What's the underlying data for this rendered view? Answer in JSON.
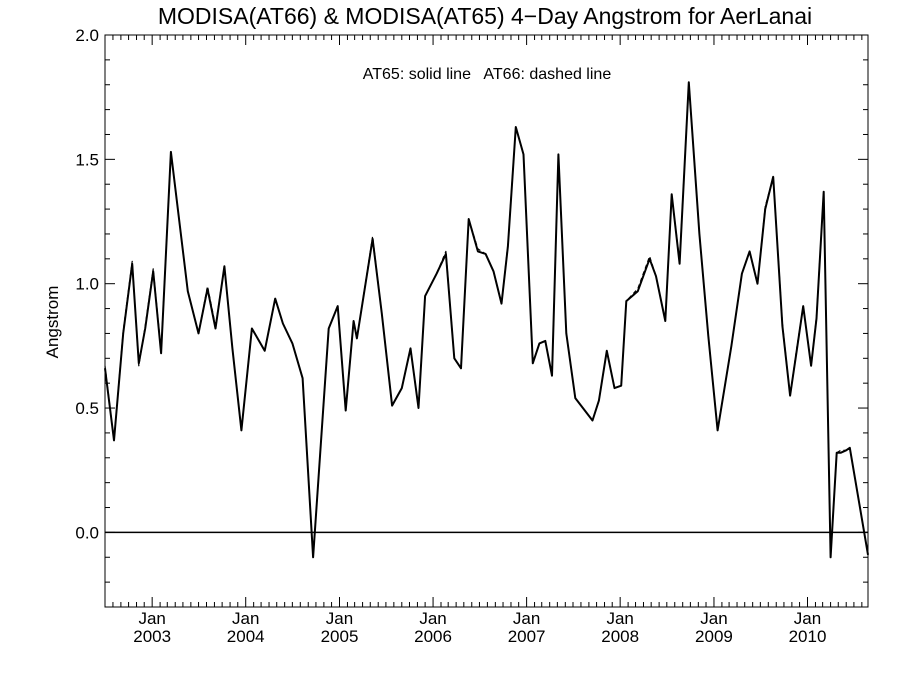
{
  "chart_data": {
    "type": "line",
    "title": "MODISA(AT66) & MODISA(AT65) 4−Day Angstrom for AerLanai",
    "xlabel": "",
    "ylabel": "Angstrom",
    "annotation": "AT65: solid line   AT66: dashed line",
    "ylim": [
      -0.3,
      2.0
    ],
    "xlim": [
      "2002-07-01",
      "2010-08-25"
    ],
    "y_ticks": [
      -0.3,
      0.0,
      0.5,
      1.0,
      1.5,
      2.0
    ],
    "y_tick_labels": [
      "0.0",
      "0.5",
      "1.0",
      "1.5",
      "2.0"
    ],
    "y_tick_label_values": [
      0.0,
      0.5,
      1.0,
      1.5,
      2.0
    ],
    "x_major_ticks": [
      {
        "date": "2003-01-01",
        "month": "Jan",
        "year": "2003"
      },
      {
        "date": "2004-01-01",
        "month": "Jan",
        "year": "2004"
      },
      {
        "date": "2005-01-01",
        "month": "Jan",
        "year": "2005"
      },
      {
        "date": "2006-01-01",
        "month": "Jan",
        "year": "2006"
      },
      {
        "date": "2007-01-01",
        "month": "Jan",
        "year": "2007"
      },
      {
        "date": "2008-01-01",
        "month": "Jan",
        "year": "2008"
      },
      {
        "date": "2009-01-01",
        "month": "Jan",
        "year": "2009"
      },
      {
        "date": "2010-01-01",
        "month": "Jan",
        "year": "2010"
      }
    ],
    "reference_line": 0.0,
    "grid": false,
    "series": [
      {
        "style": "solid",
        "points": [
          [
            "2002-07-01",
            0.66
          ],
          [
            "2002-08-05",
            0.37
          ],
          [
            "2002-09-10",
            0.8
          ],
          [
            "2002-10-15",
            1.08
          ],
          [
            "2002-11-10",
            0.68
          ],
          [
            "2002-12-05",
            0.82
          ],
          [
            "2003-01-05",
            1.05
          ],
          [
            "2003-02-05",
            0.72
          ],
          [
            "2003-03-15",
            1.53
          ],
          [
            "2003-05-20",
            0.97
          ],
          [
            "2003-07-01",
            0.8
          ],
          [
            "2003-08-05",
            0.98
          ],
          [
            "2003-09-05",
            0.82
          ],
          [
            "2003-10-10",
            1.07
          ],
          [
            "2003-11-10",
            0.74
          ],
          [
            "2003-12-15",
            0.41
          ],
          [
            "2004-01-25",
            0.82
          ],
          [
            "2004-03-15",
            0.73
          ],
          [
            "2004-04-25",
            0.94
          ],
          [
            "2004-05-25",
            0.84
          ],
          [
            "2004-07-01",
            0.76
          ],
          [
            "2004-08-10",
            0.62
          ],
          [
            "2004-09-20",
            -0.1
          ],
          [
            "2004-11-20",
            0.82
          ],
          [
            "2004-12-25",
            0.91
          ],
          [
            "2005-01-25",
            0.49
          ],
          [
            "2005-02-25",
            0.85
          ],
          [
            "2005-03-10",
            0.78
          ],
          [
            "2005-05-10",
            1.18
          ],
          [
            "2005-06-15",
            0.88
          ],
          [
            "2005-07-25",
            0.51
          ],
          [
            "2005-09-01",
            0.58
          ],
          [
            "2005-10-05",
            0.74
          ],
          [
            "2005-11-05",
            0.5
          ],
          [
            "2005-12-01",
            0.95
          ],
          [
            "2006-01-15",
            1.04
          ],
          [
            "2006-02-20",
            1.12
          ],
          [
            "2006-03-25",
            0.7
          ],
          [
            "2006-04-20",
            0.66
          ],
          [
            "2006-05-20",
            1.26
          ],
          [
            "2006-06-25",
            1.13
          ],
          [
            "2006-07-25",
            1.12
          ],
          [
            "2006-08-25",
            1.05
          ],
          [
            "2006-09-25",
            0.92
          ],
          [
            "2006-10-20",
            1.15
          ],
          [
            "2006-11-20",
            1.63
          ],
          [
            "2006-12-20",
            1.52
          ],
          [
            "2007-01-25",
            0.68
          ],
          [
            "2007-02-20",
            0.76
          ],
          [
            "2007-03-15",
            0.77
          ],
          [
            "2007-04-10",
            0.63
          ],
          [
            "2007-05-05",
            1.52
          ],
          [
            "2007-06-05",
            0.8
          ],
          [
            "2007-07-10",
            0.54
          ],
          [
            "2007-09-15",
            0.45
          ],
          [
            "2007-10-10",
            0.53
          ],
          [
            "2007-11-10",
            0.73
          ],
          [
            "2007-12-10",
            0.58
          ],
          [
            "2008-01-05",
            0.59
          ],
          [
            "2008-01-25",
            0.93
          ],
          [
            "2008-03-10",
            0.97
          ],
          [
            "2008-04-25",
            1.1
          ],
          [
            "2008-05-20",
            1.03
          ],
          [
            "2008-06-25",
            0.85
          ],
          [
            "2008-07-20",
            1.36
          ],
          [
            "2008-08-20",
            1.08
          ],
          [
            "2008-09-25",
            1.81
          ],
          [
            "2008-11-05",
            1.2
          ],
          [
            "2008-12-10",
            0.79
          ],
          [
            "2009-01-15",
            0.41
          ],
          [
            "2009-03-10",
            0.75
          ],
          [
            "2009-04-20",
            1.04
          ],
          [
            "2009-05-20",
            1.13
          ],
          [
            "2009-06-20",
            1.0
          ],
          [
            "2009-07-20",
            1.3
          ],
          [
            "2009-08-20",
            1.43
          ],
          [
            "2009-09-25",
            0.83
          ],
          [
            "2009-10-25",
            0.55
          ],
          [
            "2009-11-20",
            0.73
          ],
          [
            "2009-12-15",
            0.91
          ],
          [
            "2010-01-15",
            0.67
          ],
          [
            "2010-02-05",
            0.86
          ],
          [
            "2010-03-05",
            1.37
          ],
          [
            "2010-04-01",
            -0.1
          ],
          [
            "2010-04-25",
            0.32
          ],
          [
            "2010-05-10",
            0.32
          ],
          [
            "2010-06-01",
            0.33
          ],
          [
            "2010-06-15",
            0.34
          ],
          [
            "2010-08-25",
            -0.09
          ]
        ]
      },
      {
        "style": "dashed",
        "points": [
          [
            "2002-07-01",
            0.67
          ],
          [
            "2002-08-05",
            0.37
          ],
          [
            "2002-09-10",
            0.81
          ],
          [
            "2002-10-15",
            1.09
          ],
          [
            "2002-11-10",
            0.67
          ],
          [
            "2002-12-05",
            0.83
          ],
          [
            "2003-01-05",
            1.06
          ],
          [
            "2003-02-05",
            0.73
          ],
          [
            "2003-03-15",
            1.53
          ],
          [
            "2003-05-20",
            0.97
          ],
          [
            "2003-07-01",
            0.8
          ],
          [
            "2003-08-05",
            0.99
          ],
          [
            "2003-09-05",
            0.83
          ],
          [
            "2003-10-10",
            1.07
          ],
          [
            "2003-11-10",
            0.74
          ],
          [
            "2003-12-15",
            0.41
          ],
          [
            "2004-01-25",
            0.82
          ],
          [
            "2004-03-15",
            0.73
          ],
          [
            "2004-04-25",
            0.94
          ],
          [
            "2004-05-25",
            0.84
          ],
          [
            "2004-07-01",
            0.76
          ],
          [
            "2004-08-10",
            0.62
          ],
          [
            "2004-09-20",
            -0.1
          ],
          [
            "2004-11-20",
            0.82
          ],
          [
            "2004-12-25",
            0.91
          ],
          [
            "2005-01-25",
            0.49
          ],
          [
            "2005-02-25",
            0.85
          ],
          [
            "2005-03-10",
            0.78
          ],
          [
            "2005-05-10",
            1.19
          ],
          [
            "2005-06-15",
            0.88
          ],
          [
            "2005-07-25",
            0.51
          ],
          [
            "2005-09-01",
            0.58
          ],
          [
            "2005-10-05",
            0.74
          ],
          [
            "2005-11-05",
            0.5
          ],
          [
            "2005-12-01",
            0.95
          ],
          [
            "2006-01-15",
            1.04
          ],
          [
            "2006-02-20",
            1.13
          ],
          [
            "2006-03-25",
            0.7
          ],
          [
            "2006-04-20",
            0.66
          ],
          [
            "2006-05-20",
            1.26
          ],
          [
            "2006-06-25",
            1.14
          ],
          [
            "2006-07-25",
            1.12
          ],
          [
            "2006-08-25",
            1.05
          ],
          [
            "2006-09-25",
            0.92
          ],
          [
            "2006-10-20",
            1.16
          ],
          [
            "2006-11-20",
            1.63
          ],
          [
            "2006-12-20",
            1.52
          ],
          [
            "2007-01-25",
            0.68
          ],
          [
            "2007-02-20",
            0.76
          ],
          [
            "2007-03-15",
            0.77
          ],
          [
            "2007-04-10",
            0.63
          ],
          [
            "2007-05-05",
            1.52
          ],
          [
            "2007-06-05",
            0.8
          ],
          [
            "2007-07-10",
            0.54
          ],
          [
            "2007-09-15",
            0.45
          ],
          [
            "2007-10-10",
            0.53
          ],
          [
            "2007-11-10",
            0.73
          ],
          [
            "2007-12-10",
            0.58
          ],
          [
            "2008-01-05",
            0.59
          ],
          [
            "2008-01-25",
            0.93
          ],
          [
            "2008-03-10",
            0.98
          ],
          [
            "2008-04-25",
            1.11
          ],
          [
            "2008-05-20",
            1.03
          ],
          [
            "2008-06-25",
            0.85
          ],
          [
            "2008-07-20",
            1.36
          ],
          [
            "2008-08-20",
            1.09
          ],
          [
            "2008-09-25",
            1.81
          ],
          [
            "2008-11-05",
            1.2
          ],
          [
            "2008-12-10",
            0.79
          ],
          [
            "2009-01-15",
            0.41
          ],
          [
            "2009-03-10",
            0.75
          ],
          [
            "2009-04-20",
            1.04
          ],
          [
            "2009-05-20",
            1.13
          ],
          [
            "2009-06-20",
            1.0
          ],
          [
            "2009-07-20",
            1.31
          ],
          [
            "2009-08-20",
            1.43
          ],
          [
            "2009-09-25",
            0.84
          ],
          [
            "2009-10-25",
            0.55
          ],
          [
            "2009-11-20",
            0.74
          ],
          [
            "2009-12-15",
            0.91
          ],
          [
            "2010-01-15",
            0.67
          ],
          [
            "2010-02-05",
            0.87
          ],
          [
            "2010-03-05",
            1.37
          ],
          [
            "2010-04-01",
            -0.1
          ],
          [
            "2010-04-25",
            0.32
          ],
          [
            "2010-05-10",
            0.33
          ],
          [
            "2010-06-01",
            0.33
          ],
          [
            "2010-06-15",
            0.34
          ],
          [
            "2010-08-25",
            -0.09
          ]
        ]
      }
    ]
  }
}
